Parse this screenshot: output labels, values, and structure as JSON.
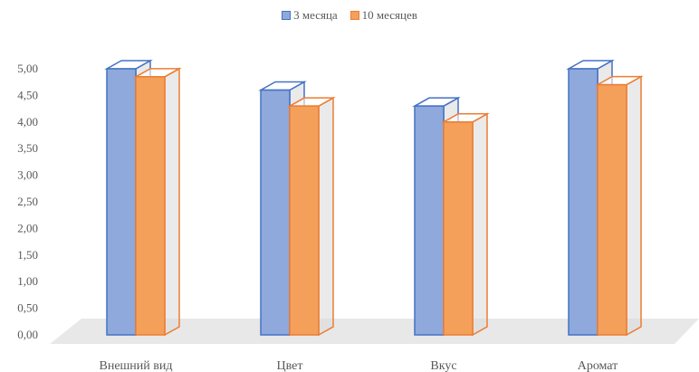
{
  "chart_data": {
    "type": "bar",
    "title": "",
    "xlabel": "",
    "ylabel": "",
    "categories": [
      "Внешний вид",
      "Цвет",
      "Вкус",
      "Аромат"
    ],
    "series": [
      {
        "name": "3 месяца",
        "values": [
          5.0,
          4.6,
          4.3,
          5.0
        ],
        "color": "#4472c4",
        "fill": "#8fa9dc"
      },
      {
        "name": "10 месяцев",
        "values": [
          4.85,
          4.3,
          4.0,
          4.7
        ],
        "color": "#ed7d31",
        "fill": "#f4a05a"
      }
    ],
    "ylim": [
      0,
      5.0
    ],
    "yticks": [
      "0,00",
      "0,50",
      "1,00",
      "1,50",
      "2,00",
      "2,50",
      "3,00",
      "3,50",
      "4,00",
      "4,50",
      "5,00"
    ],
    "grid": false,
    "legend_position": "top",
    "style": "3d-column"
  }
}
